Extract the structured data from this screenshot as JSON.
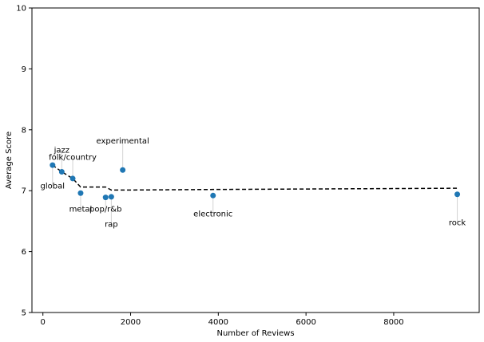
{
  "chart_data": {
    "type": "scatter",
    "xlabel": "Number of Reviews",
    "ylabel": "Average Score",
    "xlim": [
      -250,
      9950
    ],
    "ylim": [
      5,
      10
    ],
    "xticks": [
      0,
      2000,
      4000,
      6000,
      8000
    ],
    "yticks": [
      5,
      6,
      7,
      8,
      9,
      10
    ],
    "grid": false,
    "colors": {
      "point": "#1f77b4",
      "trend": "#000000",
      "leader": "#d3d3d3"
    },
    "points": [
      {
        "label": "global",
        "x": 220,
        "y": 7.42,
        "label_y": 7.08
      },
      {
        "label": "jazz",
        "x": 430,
        "y": 7.31,
        "label_y": 7.67
      },
      {
        "label": "folk/country",
        "x": 680,
        "y": 7.2,
        "label_y": 7.55
      },
      {
        "label": "metal",
        "x": 860,
        "y": 6.96,
        "label_y": 6.7
      },
      {
        "label": "pop/r&b",
        "x": 1430,
        "y": 6.89,
        "label_y": 6.7
      },
      {
        "label": "rap",
        "x": 1560,
        "y": 6.9,
        "label_y": 6.45
      },
      {
        "label": "experimental",
        "x": 1820,
        "y": 7.34,
        "label_y": 7.82
      },
      {
        "label": "electronic",
        "x": 3880,
        "y": 6.92,
        "label_y": 6.62
      },
      {
        "label": "rock",
        "x": 9450,
        "y": 6.94,
        "label_y": 6.48
      }
    ],
    "trend_line": {
      "x": [
        220,
        430,
        680,
        860,
        1430,
        1560,
        1820,
        3880,
        9450
      ],
      "y": [
        7.42,
        7.31,
        7.2,
        7.06,
        7.06,
        7.01,
        7.01,
        7.02,
        7.04
      ]
    }
  }
}
